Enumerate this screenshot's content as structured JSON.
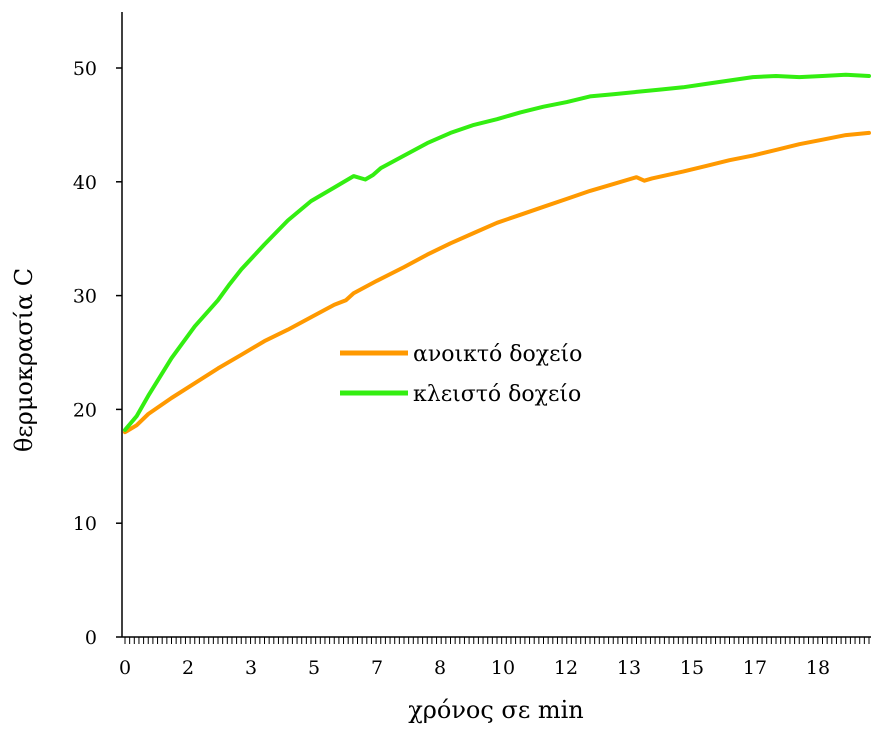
{
  "chart_data": {
    "type": "line",
    "title": "",
    "xlabel": "χρόνος σε min",
    "ylabel": "θερμοκρασία C",
    "xlim": [
      0,
      19.2
    ],
    "ylim": [
      0,
      55
    ],
    "x_tick_labels": [
      "0",
      "2",
      "3",
      "5",
      "7",
      "8",
      "10",
      "12",
      "13",
      "15",
      "17",
      "18"
    ],
    "y_ticks": [
      0,
      10,
      20,
      30,
      40,
      50
    ],
    "grid": false,
    "legend_position": "center",
    "series": [
      {
        "name": "ανοικτό δοχείο",
        "color": "#ff9900",
        "x": [
          0,
          0.3,
          0.6,
          1.2,
          1.8,
          2.4,
          3.0,
          3.6,
          4.2,
          4.8,
          5.4,
          5.7,
          5.9,
          6.5,
          7.2,
          7.8,
          8.4,
          9.0,
          9.6,
          10.2,
          10.8,
          11.4,
          12.0,
          12.6,
          13.2,
          13.4,
          13.6,
          14.4,
          15.0,
          15.6,
          16.2,
          16.8,
          17.4,
          18.0,
          18.6,
          19.2
        ],
        "values": [
          18.0,
          18.6,
          19.6,
          21.0,
          22.3,
          23.6,
          24.8,
          26.0,
          27.0,
          28.1,
          29.2,
          29.6,
          30.2,
          31.3,
          32.5,
          33.6,
          34.6,
          35.5,
          36.4,
          37.1,
          37.8,
          38.5,
          39.2,
          39.8,
          40.4,
          40.1,
          40.3,
          40.9,
          41.4,
          41.9,
          42.3,
          42.8,
          43.3,
          43.7,
          44.1,
          44.3
        ]
      },
      {
        "name": "κλειστό δοχείο",
        "color": "#33ee11",
        "x": [
          0,
          0.3,
          0.6,
          1.2,
          1.8,
          2.4,
          2.7,
          3.0,
          3.6,
          4.2,
          4.8,
          5.4,
          5.9,
          6.2,
          6.4,
          6.6,
          7.2,
          7.8,
          8.4,
          9.0,
          9.6,
          10.2,
          10.8,
          11.4,
          12.0,
          12.6,
          13.2,
          13.8,
          14.4,
          15.0,
          15.6,
          16.2,
          16.8,
          17.4,
          18.0,
          18.6,
          19.2
        ],
        "values": [
          18.2,
          19.4,
          21.2,
          24.5,
          27.3,
          29.6,
          31.0,
          32.3,
          34.5,
          36.6,
          38.3,
          39.5,
          40.5,
          40.2,
          40.6,
          41.2,
          42.3,
          43.4,
          44.3,
          45.0,
          45.5,
          46.1,
          46.6,
          47.0,
          47.5,
          47.7,
          47.9,
          48.1,
          48.3,
          48.6,
          48.9,
          49.2,
          49.3,
          49.2,
          49.3,
          49.4,
          49.3
        ]
      }
    ]
  }
}
